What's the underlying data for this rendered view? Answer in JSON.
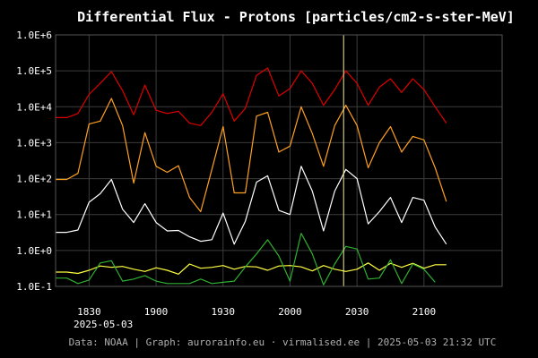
{
  "chart_data": {
    "type": "line",
    "title": "Differential Flux - Protons [particles/cm2-s-ster-MeV]",
    "y_scale": "log",
    "ylim": [
      0.1,
      1000000
    ],
    "y_ticks": [
      {
        "value": 0.1,
        "label": "1.0E-1"
      },
      {
        "value": 1,
        "label": "1.0E+0"
      },
      {
        "value": 10,
        "label": "1.0E+1"
      },
      {
        "value": 100,
        "label": "1.0E+2"
      },
      {
        "value": 1000,
        "label": "1.0E+3"
      },
      {
        "value": 10000,
        "label": "1.0E+4"
      },
      {
        "value": 100000,
        "label": "1.0E+5"
      },
      {
        "value": 1000000,
        "label": "1.0E+6"
      }
    ],
    "x_unit": "minutes",
    "xlim": [
      "18:15",
      "21:35"
    ],
    "x_ticks": [
      "1830",
      "1900",
      "1930",
      "2000",
      "2030",
      "2100"
    ],
    "date_label": "2025-05-03",
    "marker_time": "20:24",
    "grid": true,
    "x": [
      "18:15",
      "18:20",
      "18:25",
      "18:30",
      "18:35",
      "18:40",
      "18:45",
      "18:50",
      "18:55",
      "19:00",
      "19:05",
      "19:10",
      "19:15",
      "19:20",
      "19:25",
      "19:30",
      "19:35",
      "19:40",
      "19:45",
      "19:50",
      "19:55",
      "20:00",
      "20:05",
      "20:10",
      "20:15",
      "20:20",
      "20:25",
      "20:30",
      "20:35",
      "20:40",
      "20:45",
      "20:50",
      "20:55",
      "21:00",
      "21:05",
      "21:10",
      "21:15",
      "21:20"
    ],
    "series": [
      {
        "color": "#e00000",
        "values": [
          5000,
          5000,
          6500,
          22000,
          45000,
          95000,
          28000,
          6000,
          40000,
          8000,
          6500,
          7500,
          3500,
          3000,
          7000,
          23000,
          4000,
          9000,
          75000,
          120000,
          20000,
          32000,
          100000,
          45000,
          11000,
          30000,
          100000,
          45000,
          11000,
          35000,
          60000,
          25000,
          60000,
          30000,
          10000,
          3500,
          null,
          null
        ]
      },
      {
        "color": "#ffa020",
        "values": [
          95,
          95,
          140,
          3300,
          4000,
          17000,
          3000,
          75,
          1900,
          220,
          150,
          230,
          30,
          12,
          180,
          2800,
          40,
          40,
          5500,
          7000,
          550,
          800,
          10000,
          1800,
          220,
          3000,
          11000,
          3000,
          200,
          1000,
          2800,
          550,
          1500,
          1200,
          200,
          23,
          null,
          null
        ]
      },
      {
        "color": "#ffffff",
        "values": [
          3.2,
          3.2,
          3.7,
          22,
          38,
          95,
          14,
          6,
          20,
          6,
          3.5,
          3.6,
          2.4,
          1.8,
          2,
          11,
          1.5,
          6.5,
          80,
          120,
          13,
          10,
          220,
          45,
          3.5,
          45,
          180,
          100,
          5.5,
          12,
          30,
          6,
          30,
          25,
          4.5,
          1.5,
          null,
          null
        ]
      },
      {
        "color": "#ffff40",
        "values": [
          0.25,
          0.25,
          0.23,
          0.28,
          0.37,
          0.34,
          0.36,
          0.3,
          0.26,
          0.33,
          0.28,
          0.22,
          0.42,
          0.32,
          0.34,
          0.38,
          0.3,
          0.36,
          0.35,
          0.28,
          0.37,
          0.38,
          0.35,
          0.27,
          0.38,
          0.3,
          0.26,
          0.3,
          0.45,
          0.28,
          0.44,
          0.34,
          0.44,
          0.32,
          0.4,
          0.4,
          null,
          null
        ]
      },
      {
        "color": "#30b030",
        "values": [
          0.17,
          0.17,
          0.12,
          0.15,
          0.45,
          0.52,
          0.14,
          0.16,
          0.2,
          0.14,
          0.12,
          0.12,
          0.12,
          0.16,
          0.12,
          0.13,
          0.14,
          0.35,
          0.8,
          2,
          0.7,
          0.14,
          3,
          0.8,
          0.11,
          0.42,
          1.3,
          1.1,
          0.16,
          0.17,
          0.55,
          0.12,
          0.42,
          0.3,
          0.13,
          null,
          null,
          null
        ]
      }
    ]
  },
  "footer": "Data: NOAA | Graph: aurorainfo.eu · virmalised.ee | 2025-05-03 21:32 UTC"
}
